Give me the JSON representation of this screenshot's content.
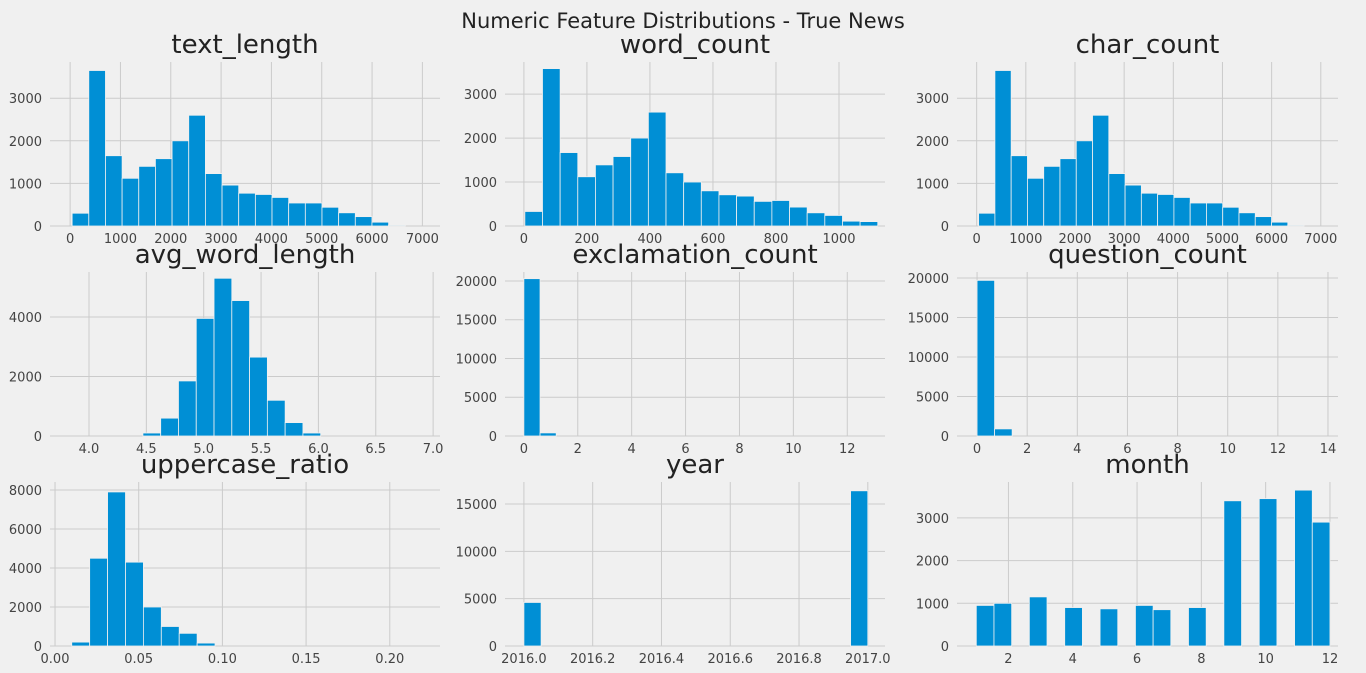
{
  "title": "Numeric Feature Distributions - True News",
  "chart_data": [
    {
      "type": "histogram",
      "title": "text_length",
      "color": "#008fd5",
      "grid": true,
      "bins": [
        40,
        371,
        702,
        1033,
        1364,
        1695,
        2026,
        2357,
        2688,
        3019,
        3350,
        3681,
        4012,
        4343,
        4674,
        5005,
        5336,
        5667,
        5998,
        6329,
        6660
      ],
      "counts": [
        300,
        3650,
        1650,
        1120,
        1400,
        1580,
        2000,
        2600,
        1230,
        960,
        770,
        740,
        670,
        540,
        540,
        440,
        310,
        220,
        90,
        20
      ],
      "xlim": [
        -400,
        7350
      ],
      "ylim": [
        0,
        3850
      ],
      "xticks": [
        0,
        1000,
        2000,
        3000,
        4000,
        5000,
        6000,
        7000
      ],
      "yticks": [
        0,
        1000,
        2000,
        3000
      ]
    },
    {
      "type": "histogram",
      "title": "word_count",
      "color": "#008fd5",
      "grid": true,
      "bins": [
        3,
        59,
        115,
        171,
        227,
        283,
        339,
        395,
        451,
        507,
        563,
        619,
        675,
        731,
        787,
        843,
        899,
        955,
        1011,
        1067,
        1123
      ],
      "counts": [
        330,
        3580,
        1670,
        1120,
        1390,
        1580,
        2000,
        2590,
        1210,
        1000,
        800,
        710,
        680,
        560,
        580,
        430,
        300,
        240,
        110,
        100
      ],
      "xlim": [
        -60,
        1146
      ],
      "ylim": [
        0,
        3730
      ],
      "xticks": [
        0,
        200,
        400,
        600,
        800,
        1000
      ],
      "yticks": [
        0,
        1000,
        2000,
        3000
      ]
    },
    {
      "type": "histogram",
      "title": "char_count",
      "color": "#008fd5",
      "grid": true,
      "bins": [
        40,
        371,
        702,
        1033,
        1364,
        1695,
        2026,
        2357,
        2688,
        3019,
        3350,
        3681,
        4012,
        4343,
        4674,
        5005,
        5336,
        5667,
        5998,
        6329,
        6660
      ],
      "counts": [
        300,
        3650,
        1650,
        1120,
        1400,
        1580,
        2000,
        2600,
        1230,
        960,
        770,
        740,
        670,
        540,
        540,
        440,
        310,
        220,
        90,
        20
      ],
      "xlim": [
        -400,
        7350
      ],
      "ylim": [
        0,
        3850
      ],
      "xticks": [
        0,
        1000,
        2000,
        3000,
        4000,
        5000,
        6000,
        7000
      ],
      "yticks": [
        0,
        1000,
        2000,
        3000
      ]
    },
    {
      "type": "histogram",
      "title": "avg_word_length",
      "color": "#008fd5",
      "grid": true,
      "bins": [
        3.85,
        4.005,
        4.16,
        4.315,
        4.47,
        4.625,
        4.78,
        4.935,
        5.09,
        5.245,
        5.4,
        5.555,
        5.71,
        5.865,
        6.02,
        6.175,
        6.33,
        6.485,
        6.64,
        6.795,
        6.95
      ],
      "counts": [
        0,
        0,
        0,
        0,
        100,
        600,
        1850,
        3950,
        5300,
        4550,
        2650,
        1200,
        450,
        100,
        0,
        0,
        0,
        0,
        0,
        0
      ],
      "xlim": [
        3.66,
        7.06
      ],
      "ylim": [
        0,
        5510
      ],
      "xticks": [
        {
          "value": 4,
          "label": "4.0"
        },
        4.5,
        {
          "value": 5,
          "label": "5.0"
        },
        5.5,
        {
          "value": 6,
          "label": "6.0"
        },
        6.5,
        {
          "value": 7,
          "label": "7.0"
        }
      ],
      "yticks": [
        0,
        2000,
        4000
      ]
    },
    {
      "type": "histogram",
      "title": "exclamation_count",
      "color": "#008fd5",
      "grid": true,
      "bins": [
        0,
        0.6,
        1.2,
        1.8,
        2.4,
        3,
        3.6,
        4.2,
        4.8,
        5.4,
        6,
        6.6,
        7.2,
        7.8,
        8.4,
        9,
        9.6,
        10.2,
        10.8,
        11.4,
        12
      ],
      "counts": [
        20300,
        400,
        0,
        0,
        0,
        0,
        0,
        0,
        0,
        0,
        0,
        0,
        0,
        0,
        0,
        0,
        0,
        0,
        0,
        0
      ],
      "xlim": [
        -0.7,
        13.4
      ],
      "ylim": [
        0,
        21160
      ],
      "xticks": [
        0,
        2,
        4,
        6,
        8,
        10,
        12
      ],
      "yticks": [
        0,
        5000,
        10000,
        15000,
        20000
      ]
    },
    {
      "type": "histogram",
      "title": "question_count",
      "color": "#008fd5",
      "grid": true,
      "bins": [
        0,
        0.7,
        1.4,
        2.1,
        2.8,
        3.5,
        4.2,
        4.9,
        5.6,
        6.3,
        7,
        7.7,
        8.4,
        9.1,
        9.8,
        10.5,
        11.2,
        11.9,
        12.6,
        13.3,
        14
      ],
      "counts": [
        19700,
        900,
        0,
        0,
        0,
        0,
        0,
        0,
        0,
        0,
        0,
        0,
        0,
        0,
        0,
        0,
        0,
        0,
        0,
        0
      ],
      "xlim": [
        -0.8,
        14.4
      ],
      "ylim": [
        0,
        20760
      ],
      "xticks": [
        0,
        2,
        4,
        6,
        8,
        10,
        12,
        14
      ],
      "yticks": [
        0,
        5000,
        10000,
        15000,
        20000
      ]
    },
    {
      "type": "histogram",
      "title": "uppercase_ratio",
      "color": "#008fd5",
      "grid": true,
      "bins": [
        0.01,
        0.0207,
        0.0314,
        0.0421,
        0.0528,
        0.0635,
        0.0742,
        0.0849,
        0.0956,
        0.1063,
        0.117,
        0.1277,
        0.1384,
        0.1491,
        0.1598,
        0.1705,
        0.1812,
        0.1919,
        0.2026,
        0.2133,
        0.224
      ],
      "counts": [
        200,
        4500,
        7900,
        4300,
        2000,
        1000,
        650,
        150,
        0,
        0,
        0,
        0,
        0,
        0,
        0,
        0,
        0,
        0,
        0,
        0
      ],
      "xlim": [
        -0.003,
        0.23
      ],
      "ylim": [
        0,
        8410
      ],
      "xticks": [
        {
          "value": 0,
          "label": "0.00"
        },
        0.05,
        {
          "value": 0.1,
          "label": "0.10"
        },
        0.15,
        {
          "value": 0.2,
          "label": "0.20"
        }
      ],
      "yticks": [
        0,
        2000,
        4000,
        6000,
        8000
      ]
    },
    {
      "type": "histogram",
      "title": "year",
      "color": "#008fd5",
      "grid": true,
      "bins": [
        2016,
        2016.05,
        2016.1,
        2016.15,
        2016.2,
        2016.25,
        2016.3,
        2016.35,
        2016.4,
        2016.45,
        2016.5,
        2016.55,
        2016.6,
        2016.65,
        2016.7,
        2016.75,
        2016.8,
        2016.85,
        2016.9,
        2016.95,
        2017
      ],
      "counts": [
        4600,
        0,
        0,
        0,
        0,
        0,
        0,
        0,
        0,
        0,
        0,
        0,
        0,
        0,
        0,
        0,
        0,
        0,
        0,
        16400
      ],
      "xlim": [
        2015.945,
        2017.05
      ],
      "ylim": [
        0,
        17330
      ],
      "xticks": [
        {
          "value": 2016,
          "label": "2016.0"
        },
        2016.2,
        2016.4,
        2016.6,
        2016.8,
        {
          "value": 2017,
          "label": "2017.0"
        }
      ],
      "yticks": [
        0,
        5000,
        10000,
        15000
      ]
    },
    {
      "type": "histogram",
      "title": "month",
      "color": "#008fd5",
      "grid": true,
      "bins": [
        1,
        1.55,
        2.1,
        2.65,
        3.2,
        3.75,
        4.3,
        4.85,
        5.4,
        5.95,
        6.5,
        7.05,
        7.6,
        8.15,
        8.7,
        9.25,
        9.8,
        10.35,
        10.9,
        11.45,
        12
      ],
      "counts": [
        950,
        1000,
        0,
        1150,
        0,
        900,
        0,
        870,
        0,
        950,
        850,
        0,
        900,
        0,
        3400,
        0,
        3450,
        0,
        3650,
        2900
      ],
      "xlim": [
        0.4,
        12.25
      ],
      "ylim": [
        0,
        3840
      ],
      "xticks": [
        2,
        4,
        6,
        8,
        10,
        12
      ],
      "yticks": [
        0,
        1000,
        2000,
        3000
      ]
    }
  ]
}
